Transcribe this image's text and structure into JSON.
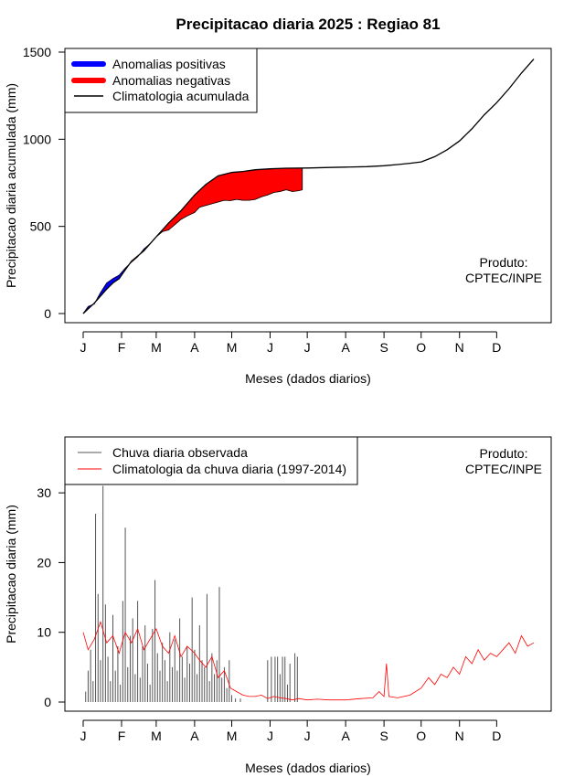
{
  "title": "Precipitacao diaria 2025 : Regiao 81",
  "credit": {
    "line1": "Produto:",
    "line2": "CPTEC/INPE"
  },
  "chart_data": [
    {
      "type": "area",
      "ylabel": "Precipitacao diaria acumulada (mm)",
      "xlabel": "Meses (dados diarios)",
      "ylim": [
        0,
        1500
      ],
      "yticks": [
        0,
        500,
        1000,
        1500
      ],
      "xlim": [
        1,
        365
      ],
      "month_ticks": {
        "labels": [
          "J",
          "F",
          "M",
          "A",
          "M",
          "J",
          "J",
          "A",
          "S",
          "O",
          "N",
          "D"
        ],
        "days": [
          1,
          32,
          60,
          91,
          121,
          152,
          182,
          213,
          244,
          274,
          305,
          335
        ]
      },
      "legend": {
        "placement": "top-left",
        "items": [
          {
            "label": "Anomalias positivas",
            "color": "#0000ff"
          },
          {
            "label": "Anomalias negativas",
            "color": "#ff0000"
          },
          {
            "label": "Climatologia acumulada",
            "color": "#000000"
          }
        ]
      },
      "climatology_cumulative": {
        "x": [
          1,
          10,
          20,
          25,
          30,
          35,
          40,
          50,
          60,
          70,
          80,
          91,
          100,
          110,
          121,
          130,
          140,
          152,
          165,
          182,
          200,
          213,
          230,
          244,
          255,
          265,
          274,
          285,
          295,
          305,
          315,
          325,
          335,
          345,
          355,
          365
        ],
        "y": [
          0,
          60,
          140,
          175,
          200,
          250,
          300,
          360,
          440,
          520,
          590,
          680,
          740,
          790,
          810,
          815,
          825,
          830,
          834,
          835,
          838,
          840,
          843,
          848,
          855,
          862,
          870,
          900,
          940,
          990,
          1060,
          1140,
          1210,
          1290,
          1380,
          1460
        ]
      },
      "observed_cumulative": {
        "x": [
          1,
          5,
          10,
          15,
          20,
          25,
          30,
          35,
          40,
          45,
          50,
          55,
          60,
          65,
          70,
          75,
          80,
          85,
          91,
          95,
          100,
          105,
          110,
          115,
          120,
          125,
          130,
          135,
          140,
          145,
          150,
          155,
          160,
          165,
          170,
          175,
          178
        ],
        "y": [
          0,
          40,
          55,
          120,
          175,
          200,
          220,
          260,
          295,
          325,
          370,
          400,
          440,
          470,
          480,
          510,
          540,
          560,
          580,
          610,
          620,
          630,
          640,
          650,
          648,
          655,
          650,
          650,
          655,
          670,
          680,
          695,
          700,
          710,
          700,
          705,
          710
        ]
      },
      "colors": {
        "positive": "#0000ff",
        "negative": "#ff0000",
        "climatology": "#000000"
      }
    },
    {
      "type": "bar",
      "ylabel": "Precipitacao diaria (mm)",
      "xlabel": "Meses (dados diarios)",
      "ylim": [
        0,
        35
      ],
      "yticks": [
        0,
        10,
        20,
        30
      ],
      "xlim": [
        1,
        365
      ],
      "month_ticks": {
        "labels": [
          "J",
          "F",
          "M",
          "A",
          "M",
          "J",
          "J",
          "A",
          "S",
          "O",
          "N",
          "D"
        ],
        "days": [
          1,
          32,
          60,
          91,
          121,
          152,
          182,
          213,
          244,
          274,
          305,
          335
        ]
      },
      "legend": {
        "placement": "top-left",
        "items": [
          {
            "label": "Chuva diaria observada",
            "color": "#555555"
          },
          {
            "label": "Climatologia da chuva diaria (1997-2014)",
            "color": "#ff0000"
          }
        ]
      },
      "observed_daily": {
        "x": [
          3,
          5,
          7,
          9,
          11,
          13,
          15,
          17,
          19,
          21,
          23,
          25,
          27,
          29,
          31,
          33,
          35,
          37,
          39,
          41,
          43,
          45,
          47,
          49,
          51,
          53,
          55,
          57,
          59,
          61,
          63,
          65,
          67,
          69,
          71,
          73,
          75,
          77,
          79,
          81,
          83,
          85,
          87,
          89,
          91,
          93,
          95,
          97,
          99,
          101,
          103,
          105,
          107,
          109,
          111,
          113,
          115,
          117,
          119,
          121,
          124,
          128,
          150,
          153,
          156,
          158,
          160,
          162,
          164,
          166,
          168,
          172,
          174
        ],
        "values": [
          1.5,
          4.5,
          7.5,
          3.0,
          27.0,
          15.5,
          6.0,
          31.0,
          14.0,
          6.5,
          3.0,
          12.5,
          4.5,
          8.0,
          2.5,
          14.5,
          25.0,
          5.0,
          9.5,
          12.0,
          4.0,
          14.5,
          3.5,
          8.0,
          11.0,
          5.5,
          2.5,
          10.5,
          17.5,
          7.0,
          4.5,
          8.5,
          6.0,
          3.0,
          10.0,
          5.0,
          9.0,
          4.5,
          12.0,
          6.5,
          3.5,
          8.0,
          5.5,
          15.0,
          7.5,
          4.0,
          11.0,
          6.0,
          5.0,
          15.5,
          3.0,
          7.0,
          4.0,
          6.0,
          16.5,
          3.5,
          5.0,
          2.0,
          6.0,
          1.0,
          0.5,
          0.5,
          6.0,
          6.5,
          6.5,
          6.5,
          4.0,
          6.5,
          6.5,
          2.5,
          5.5,
          7.0,
          6.5
        ]
      },
      "climatology_daily": {
        "x": [
          1,
          5,
          10,
          15,
          20,
          25,
          30,
          35,
          40,
          45,
          50,
          55,
          60,
          65,
          70,
          75,
          80,
          85,
          91,
          95,
          100,
          105,
          110,
          115,
          120,
          125,
          130,
          135,
          140,
          145,
          150,
          155,
          160,
          165,
          170,
          175,
          182,
          190,
          200,
          213,
          225,
          235,
          240,
          244,
          246,
          248,
          255,
          265,
          274,
          280,
          285,
          290,
          295,
          300,
          305,
          310,
          315,
          320,
          325,
          330,
          335,
          340,
          345,
          350,
          355,
          360,
          365
        ],
        "values": [
          10.0,
          7.5,
          9.0,
          11.5,
          8.5,
          9.5,
          7.0,
          10.0,
          8.5,
          10.5,
          7.5,
          9.0,
          10.5,
          8.0,
          7.0,
          9.5,
          6.5,
          8.0,
          7.0,
          6.0,
          5.0,
          6.5,
          3.5,
          4.5,
          2.0,
          1.5,
          1.0,
          0.8,
          0.8,
          1.0,
          0.5,
          0.8,
          0.6,
          0.5,
          0.3,
          0.5,
          0.3,
          0.4,
          0.3,
          0.3,
          0.5,
          0.6,
          1.5,
          0.8,
          5.5,
          0.8,
          0.6,
          1.0,
          2.0,
          3.5,
          2.5,
          4.0,
          3.5,
          5.0,
          4.0,
          6.5,
          5.5,
          7.5,
          6.0,
          7.0,
          6.5,
          7.5,
          8.5,
          7.0,
          9.5,
          8.0,
          8.5
        ]
      }
    }
  ]
}
